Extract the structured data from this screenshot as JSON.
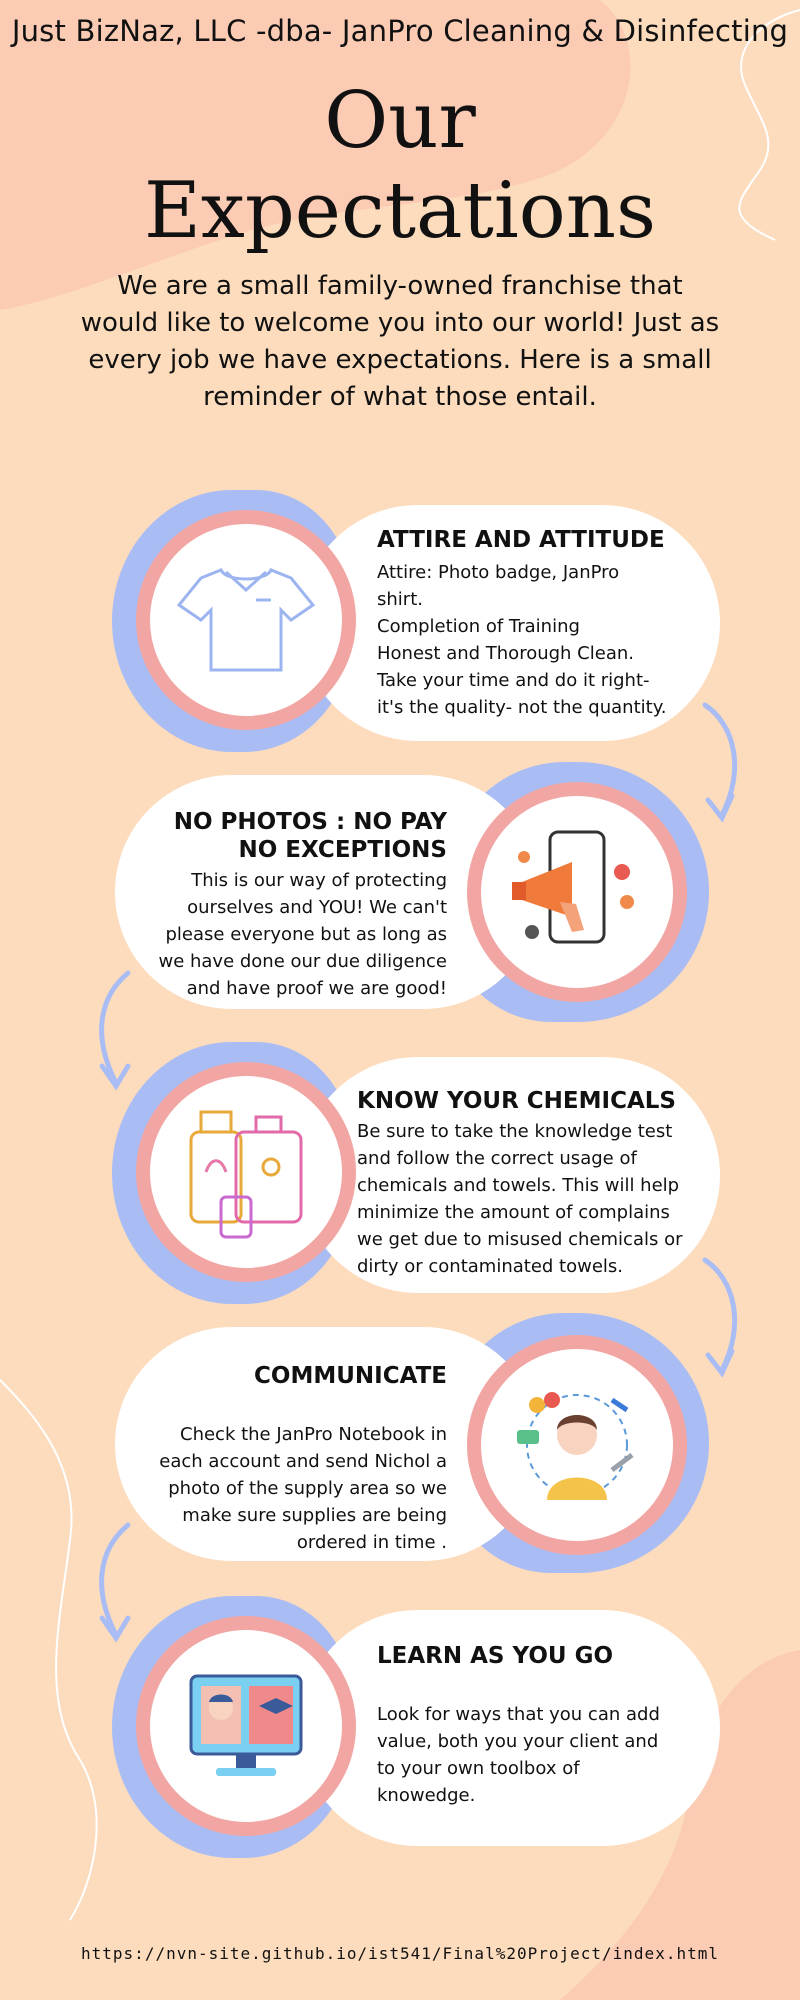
{
  "header": {
    "company": "Just BizNaz, LLC -dba- JanPro Cleaning & Disinfecting",
    "title_line1": "Our",
    "title_line2": "Expectations",
    "intro": "We are a small family-owned franchise that would like to welcome you into our world! Just as every job we have expectations. Here is a small reminder of what those entail."
  },
  "sections": [
    {
      "heading": "ATTIRE AND ATTITUDE",
      "lines": [
        "Attire: Photo badge, JanPro shirt.",
        "Completion of Training",
        "Honest and Thorough Clean.",
        "Take your time and do it right- it's the quality- not the quantity."
      ],
      "icon": "shirt-icon"
    },
    {
      "heading_line1": "NO PHOTOS : NO PAY",
      "heading_line2": "NO EXCEPTIONS",
      "text": "This is our way of protecting ourselves and YOU!  We can't please everyone but as long as we have done our due diligence and have proof we are good!",
      "icon": "megaphone-phone-icon"
    },
    {
      "heading": "KNOW YOUR CHEMICALS",
      "text": "Be sure to take the knowledge test and follow the correct usage of chemicals and towels. This will help minimize the amount of complains we get due to misused chemicals or dirty or contaminated towels.",
      "icon": "chemical-bottles-icon"
    },
    {
      "heading": "COMMUNICATE",
      "text": "Check the JanPro Notebook in each account and send  Nichol a photo of the supply area so we make sure supplies are being ordered  in time .",
      "icon": "communication-person-icon"
    },
    {
      "heading": "LEARN AS YOU GO",
      "text": "Look for ways that you can add value, both you your client and to your own toolbox of knowedge.",
      "icon": "online-learning-icon"
    }
  ],
  "footer": {
    "url": "https://nvn-site.github.io/ist541/Final%20Project/index.html"
  },
  "colors": {
    "background": "#fcdcbd",
    "blob_peach": "#fccbb4",
    "blue": "#a9bdf4",
    "pink": "#f1a6a4",
    "card": "#ffffff"
  }
}
